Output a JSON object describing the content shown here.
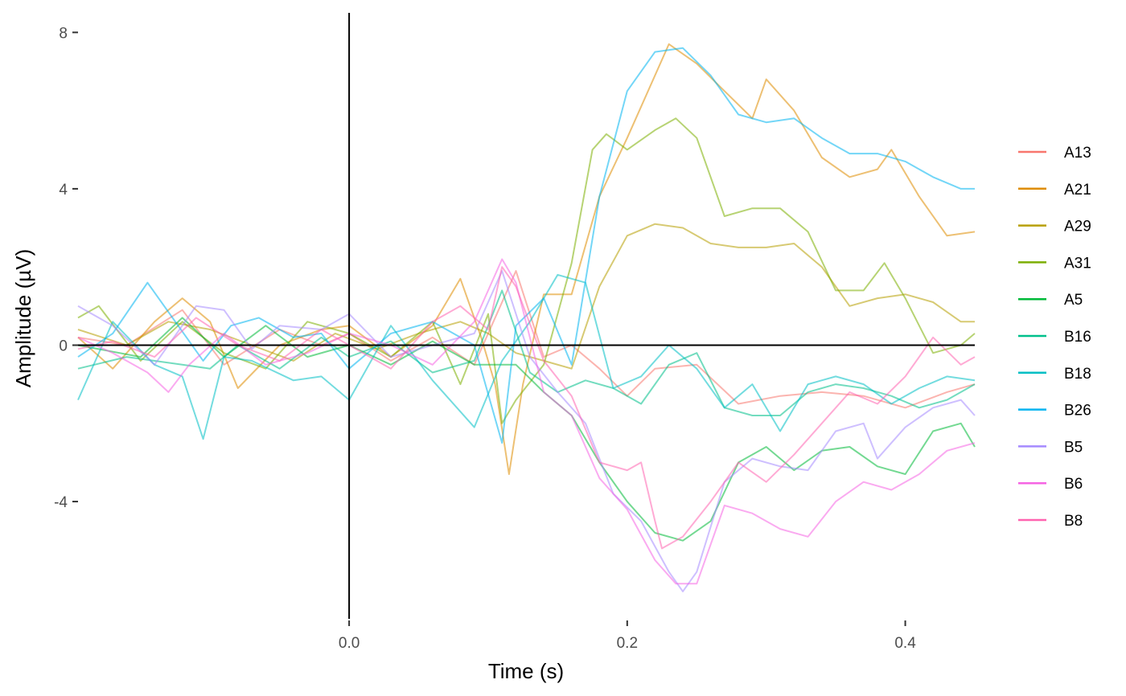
{
  "chart_data": {
    "type": "line",
    "title": "",
    "xlabel": "Time (s)",
    "ylabel": "Amplitude (µV)",
    "xlim": [
      -0.195,
      0.45
    ],
    "ylim": [
      -7.0,
      8.5
    ],
    "xticks": [
      0.0,
      0.2,
      0.4
    ],
    "xtick_labels": [
      "0.0",
      "0.2",
      "0.4"
    ],
    "yticks": [
      -4,
      0,
      4,
      8
    ],
    "ytick_labels": [
      "-4",
      "0",
      "4",
      "8"
    ],
    "grid": false,
    "reference_lines": {
      "x": 0,
      "y": 0
    },
    "legend_position": "right",
    "line_opacity": 0.55,
    "series": [
      {
        "name": "A13",
        "color": "#F8766D",
        "x": [
          -0.195,
          -0.16,
          -0.12,
          -0.09,
          -0.05,
          -0.02,
          0.0,
          0.03,
          0.06,
          0.09,
          0.12,
          0.14,
          0.16,
          0.18,
          0.2,
          0.22,
          0.25,
          0.28,
          0.31,
          0.34,
          0.37,
          0.4,
          0.43,
          0.45
        ],
        "y": [
          0.2,
          0.0,
          0.9,
          -0.5,
          0.4,
          0.0,
          0.3,
          -0.4,
          0.2,
          -0.5,
          1.9,
          -0.3,
          0.0,
          -0.6,
          -1.3,
          -0.6,
          -0.5,
          -1.5,
          -1.3,
          -1.2,
          -1.3,
          -1.6,
          -1.2,
          -1.0
        ]
      },
      {
        "name": "A21",
        "color": "#DE8C00",
        "x": [
          -0.195,
          -0.17,
          -0.14,
          -0.12,
          -0.1,
          -0.08,
          -0.05,
          -0.02,
          0.0,
          0.03,
          0.06,
          0.08,
          0.095,
          0.105,
          0.115,
          0.125,
          0.14,
          0.16,
          0.18,
          0.2,
          0.23,
          0.25,
          0.27,
          0.29,
          0.3,
          0.32,
          0.34,
          0.36,
          0.38,
          0.39,
          0.41,
          0.43,
          0.45
        ],
        "y": [
          0.2,
          -0.6,
          0.6,
          1.2,
          0.6,
          -1.1,
          0.0,
          0.4,
          0.5,
          -0.3,
          0.5,
          1.7,
          0.2,
          -1.0,
          -3.3,
          -1.0,
          1.3,
          1.3,
          3.8,
          5.3,
          7.7,
          7.2,
          6.5,
          5.8,
          6.8,
          6.0,
          4.8,
          4.3,
          4.5,
          5.0,
          3.8,
          2.8,
          2.9
        ]
      },
      {
        "name": "A29",
        "color": "#B79F00",
        "x": [
          -0.195,
          -0.16,
          -0.13,
          -0.1,
          -0.07,
          -0.04,
          -0.01,
          0.02,
          0.05,
          0.08,
          0.1,
          0.12,
          0.14,
          0.16,
          0.18,
          0.2,
          0.22,
          0.24,
          0.26,
          0.28,
          0.3,
          0.32,
          0.34,
          0.36,
          0.38,
          0.4,
          0.42,
          0.44,
          0.45
        ],
        "y": [
          0.4,
          0.0,
          0.6,
          0.4,
          0.0,
          -0.4,
          0.3,
          -0.1,
          0.3,
          0.6,
          0.3,
          -0.2,
          -0.4,
          -0.6,
          1.5,
          2.8,
          3.1,
          3.0,
          2.6,
          2.5,
          2.5,
          2.6,
          2.0,
          1.0,
          1.2,
          1.3,
          1.1,
          0.6,
          0.6
        ]
      },
      {
        "name": "A31",
        "color": "#7CAE00",
        "x": [
          -0.195,
          -0.18,
          -0.15,
          -0.12,
          -0.09,
          -0.06,
          -0.03,
          0.0,
          0.03,
          0.06,
          0.08,
          0.1,
          0.11,
          0.12,
          0.14,
          0.16,
          0.175,
          0.185,
          0.2,
          0.22,
          0.235,
          0.25,
          0.27,
          0.29,
          0.31,
          0.33,
          0.35,
          0.37,
          0.385,
          0.4,
          0.42,
          0.44,
          0.45
        ],
        "y": [
          0.7,
          1.0,
          -0.4,
          0.6,
          -0.2,
          -0.6,
          0.6,
          0.3,
          -0.3,
          0.6,
          -1.0,
          0.8,
          -2.0,
          -1.4,
          -0.5,
          2.1,
          5.0,
          5.4,
          5.0,
          5.5,
          5.8,
          5.3,
          3.3,
          3.5,
          3.5,
          2.9,
          1.4,
          1.4,
          2.1,
          1.2,
          -0.2,
          0.0,
          0.3
        ]
      },
      {
        "name": "A5",
        "color": "#00BA38",
        "x": [
          -0.195,
          -0.15,
          -0.12,
          -0.09,
          -0.06,
          -0.03,
          0.0,
          0.03,
          0.06,
          0.09,
          0.12,
          0.14,
          0.16,
          0.18,
          0.2,
          0.22,
          0.24,
          0.26,
          0.28,
          0.3,
          0.32,
          0.34,
          0.36,
          0.38,
          0.4,
          0.42,
          0.44,
          0.45
        ],
        "y": [
          0.0,
          -0.3,
          0.7,
          -0.3,
          0.5,
          -0.3,
          0.0,
          -0.5,
          0.1,
          -0.5,
          -0.5,
          -1.2,
          -1.8,
          -3.0,
          -4.0,
          -4.8,
          -5.0,
          -4.5,
          -3.0,
          -2.6,
          -3.2,
          -2.7,
          -2.6,
          -3.1,
          -3.3,
          -2.2,
          -2.0,
          -2.6
        ]
      },
      {
        "name": "B16",
        "color": "#00C08B",
        "x": [
          -0.195,
          -0.16,
          -0.12,
          -0.1,
          -0.08,
          -0.05,
          -0.02,
          0.0,
          0.03,
          0.06,
          0.09,
          0.11,
          0.13,
          0.15,
          0.17,
          0.19,
          0.21,
          0.23,
          0.25,
          0.27,
          0.29,
          0.31,
          0.33,
          0.35,
          0.37,
          0.39,
          0.41,
          0.43,
          0.45
        ],
        "y": [
          -0.6,
          -0.3,
          -0.5,
          -0.6,
          0.0,
          -0.6,
          0.2,
          -0.3,
          0.1,
          -0.7,
          -0.4,
          1.4,
          -0.7,
          -1.2,
          -0.9,
          -1.1,
          -1.5,
          -0.5,
          -0.2,
          -1.6,
          -1.8,
          -1.8,
          -1.2,
          -1.0,
          -1.1,
          -1.3,
          -1.6,
          -1.4,
          -1.0
        ]
      },
      {
        "name": "B18",
        "color": "#00BFC4",
        "x": [
          -0.195,
          -0.17,
          -0.14,
          -0.12,
          -0.105,
          -0.09,
          -0.07,
          -0.04,
          -0.02,
          0.0,
          0.03,
          0.06,
          0.09,
          0.11,
          0.13,
          0.15,
          0.17,
          0.19,
          0.21,
          0.23,
          0.25,
          0.27,
          0.29,
          0.31,
          0.33,
          0.35,
          0.37,
          0.39,
          0.41,
          0.43,
          0.45
        ],
        "y": [
          -1.4,
          0.6,
          -0.5,
          -0.8,
          -2.4,
          -0.3,
          -0.4,
          -0.9,
          -0.8,
          -1.4,
          0.5,
          -0.9,
          -2.1,
          -0.4,
          0.6,
          1.8,
          1.6,
          -1.1,
          -0.8,
          0.0,
          -0.6,
          -1.6,
          -1.0,
          -2.2,
          -1.0,
          -0.8,
          -1.0,
          -1.5,
          -1.1,
          -0.8,
          -0.9
        ]
      },
      {
        "name": "B26",
        "color": "#00B4F0",
        "x": [
          -0.195,
          -0.17,
          -0.145,
          -0.125,
          -0.105,
          -0.085,
          -0.065,
          -0.04,
          -0.02,
          0.0,
          0.03,
          0.06,
          0.09,
          0.11,
          0.12,
          0.14,
          0.16,
          0.18,
          0.2,
          0.22,
          0.24,
          0.26,
          0.28,
          0.3,
          0.32,
          0.34,
          0.36,
          0.38,
          0.4,
          0.42,
          0.44,
          0.45
        ],
        "y": [
          -0.3,
          0.3,
          1.6,
          0.6,
          -0.4,
          0.5,
          0.7,
          0.2,
          0.3,
          -0.6,
          0.3,
          0.6,
          0.0,
          -2.5,
          0.5,
          1.2,
          -0.5,
          3.8,
          6.5,
          7.5,
          7.6,
          6.9,
          5.9,
          5.7,
          5.8,
          5.3,
          4.9,
          4.9,
          4.7,
          4.3,
          4.0,
          4.0
        ]
      },
      {
        "name": "B5",
        "color": "#A58AFF",
        "x": [
          -0.195,
          -0.17,
          -0.14,
          -0.11,
          -0.09,
          -0.07,
          -0.05,
          -0.02,
          0.0,
          0.03,
          0.06,
          0.09,
          0.11,
          0.13,
          0.15,
          0.17,
          0.19,
          0.21,
          0.23,
          0.24,
          0.25,
          0.27,
          0.29,
          0.31,
          0.33,
          0.35,
          0.37,
          0.38,
          0.4,
          0.42,
          0.44,
          0.45
        ],
        "y": [
          1.0,
          0.5,
          -0.5,
          1.0,
          0.9,
          -0.1,
          0.5,
          0.4,
          0.8,
          -0.3,
          0.0,
          0.3,
          1.9,
          -0.3,
          -1.2,
          -2.0,
          -3.8,
          -4.5,
          -5.8,
          -6.3,
          -5.8,
          -3.5,
          -2.9,
          -3.1,
          -3.2,
          -2.2,
          -2.0,
          -2.9,
          -2.1,
          -1.6,
          -1.4,
          -1.8
        ]
      },
      {
        "name": "B6",
        "color": "#F564E3",
        "x": [
          -0.195,
          -0.17,
          -0.145,
          -0.13,
          -0.115,
          -0.09,
          -0.06,
          -0.03,
          0.0,
          0.03,
          0.06,
          0.09,
          0.11,
          0.12,
          0.14,
          0.16,
          0.18,
          0.2,
          0.22,
          0.235,
          0.25,
          0.27,
          0.29,
          0.31,
          0.33,
          0.35,
          0.37,
          0.39,
          0.41,
          0.43,
          0.45
        ],
        "y": [
          0.2,
          -0.2,
          -0.7,
          -1.2,
          -0.5,
          0.3,
          -0.5,
          -0.2,
          0.3,
          0.0,
          -0.5,
          0.6,
          2.2,
          1.6,
          -1.2,
          -1.8,
          -3.4,
          -4.2,
          -5.5,
          -6.1,
          -6.1,
          -4.1,
          -4.3,
          -4.7,
          -4.9,
          -4.0,
          -3.5,
          -3.7,
          -3.3,
          -2.7,
          -2.5
        ]
      },
      {
        "name": "B8",
        "color": "#FF64B0",
        "x": [
          -0.195,
          -0.17,
          -0.14,
          -0.11,
          -0.08,
          -0.05,
          -0.02,
          0.0,
          0.03,
          0.06,
          0.08,
          0.1,
          0.11,
          0.12,
          0.14,
          0.16,
          0.18,
          0.2,
          0.21,
          0.22,
          0.225,
          0.24,
          0.26,
          0.28,
          0.3,
          0.32,
          0.34,
          0.36,
          0.38,
          0.4,
          0.42,
          0.44,
          0.45
        ],
        "y": [
          -0.1,
          0.1,
          -0.3,
          0.7,
          0.0,
          -0.4,
          0.4,
          0.0,
          -0.6,
          0.6,
          1.0,
          0.4,
          2.0,
          1.5,
          -0.4,
          -1.3,
          -3.0,
          -3.2,
          -3.0,
          -4.5,
          -5.2,
          -4.9,
          -4.0,
          -3.0,
          -3.5,
          -2.8,
          -2.0,
          -1.2,
          -1.5,
          -0.8,
          0.2,
          -0.5,
          -0.3
        ]
      }
    ]
  }
}
